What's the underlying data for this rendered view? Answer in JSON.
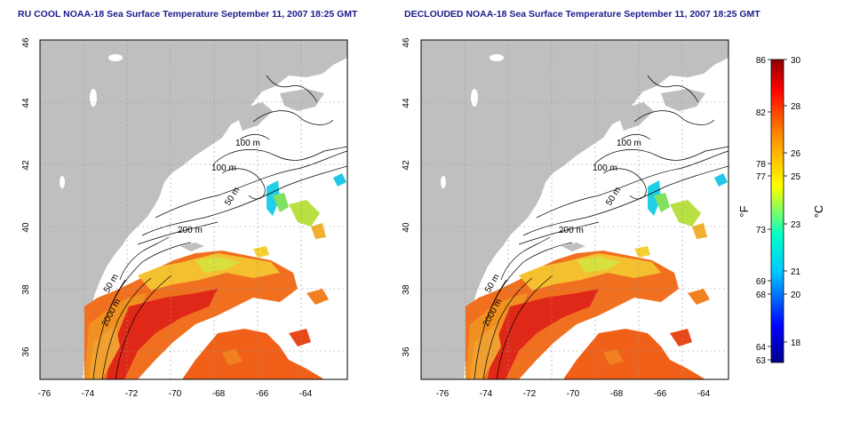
{
  "panels": [
    {
      "title": "RU COOL NOAA-18 Sea Surface Temperature September 11, 2007 18:25 GMT",
      "x_ticks": [
        "-76",
        "-74",
        "-72",
        "-70",
        "-68",
        "-66",
        "-64"
      ],
      "y_ticks": [
        "46",
        "44",
        "42",
        "40",
        "38",
        "36"
      ],
      "contour_labels": [
        "100 m",
        "100 m",
        "50 m",
        "200 m",
        "50 m",
        "2000 m"
      ]
    },
    {
      "title": "DECLOUDED NOAA-18 Sea Surface Temperature September 11, 2007 18:25 GMT",
      "x_ticks": [
        "-76",
        "-74",
        "-72",
        "-70",
        "-68",
        "-66",
        "-64"
      ],
      "y_ticks": [
        "46",
        "44",
        "42",
        "40",
        "38",
        "36"
      ],
      "contour_labels": [
        "100 m",
        "100 m",
        "50 m",
        "200 m",
        "50 m",
        "2000 m"
      ]
    }
  ],
  "colorbar": {
    "f_label": "°F",
    "c_label": "°C",
    "f_ticks": [
      "86",
      "82",
      "78",
      "77",
      "73",
      "69",
      "68",
      "64",
      "63"
    ],
    "c_ticks": [
      "30",
      "28",
      "26",
      "25",
      "23",
      "21",
      "20",
      "18"
    ],
    "colors": [
      "#00008b",
      "#0000ff",
      "#00c8ff",
      "#00ffc8",
      "#ffff00",
      "#ff8c00",
      "#ff0000",
      "#8b0000"
    ]
  }
}
